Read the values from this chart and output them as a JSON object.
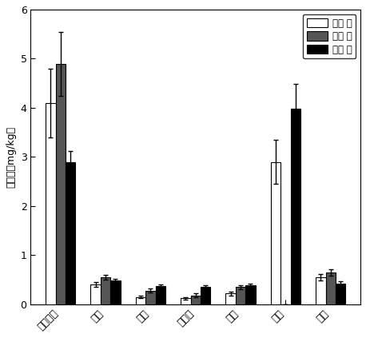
{
  "categories": [
    "金丝垂柳",
    "銀杏",
    "香樟",
    "广玉兰",
    "梣树",
    "杨树",
    "水杉"
  ],
  "stem": [
    4.1,
    0.4,
    0.15,
    0.12,
    0.22,
    2.9,
    0.55
  ],
  "leaf": [
    4.9,
    0.55,
    0.28,
    0.18,
    0.35,
    0.0,
    0.65
  ],
  "root": [
    2.9,
    0.48,
    0.37,
    0.35,
    0.38,
    3.98,
    0.42
  ],
  "stem_err": [
    0.7,
    0.05,
    0.03,
    0.02,
    0.04,
    0.45,
    0.06
  ],
  "leaf_err": [
    0.65,
    0.05,
    0.04,
    0.04,
    0.04,
    0.0,
    0.07
  ],
  "root_err": [
    0.22,
    0.04,
    0.04,
    0.03,
    0.04,
    0.5,
    0.05
  ],
  "stem_color": "#ffffff",
  "leaf_color": "#555555",
  "root_color": "#000000",
  "stem_label": "茎浓 度",
  "leaf_label": "叶浓 度",
  "root_label": "根浓 度",
  "ylabel": "干浓度（mg/kg）",
  "ylim": [
    0,
    6
  ],
  "yticks": [
    0,
    1,
    2,
    3,
    4,
    5,
    6
  ],
  "bar_width": 0.22,
  "edgecolor": "#000000",
  "background_color": "#ffffff"
}
